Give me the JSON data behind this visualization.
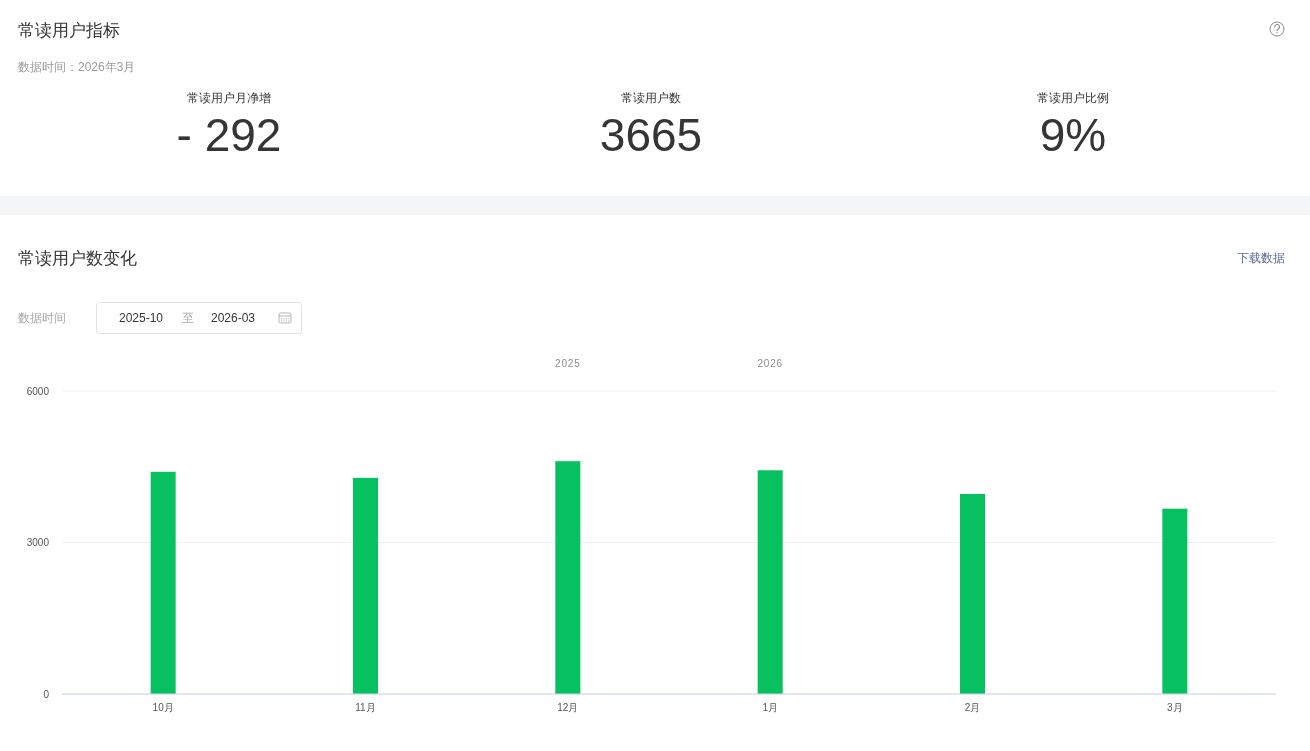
{
  "chart_data": [
    {
      "type": "other",
      "title": "常读用户指标",
      "subtitle": "数据时间：2026年3月",
      "categories": [
        "常读用户月净增",
        "常读用户数",
        "常读用户比例"
      ],
      "annotations": [
        "- 292",
        "3665",
        "9%"
      ]
    },
    {
      "type": "bar",
      "title": "常读用户数变化",
      "categories": [
        "10月",
        "11月",
        "12月",
        "1月",
        "2月",
        "3月"
      ],
      "values": [
        4400,
        4280,
        4610,
        4430,
        3960,
        3670
      ],
      "color": "#07c160",
      "ylim": [
        0,
        6000
      ],
      "yticks": [
        0,
        3000,
        6000
      ],
      "grid": "y",
      "annotations": [
        "下载数据",
        "数据时间",
        "2025-10",
        "至",
        "2026-03",
        "2025",
        "2026"
      ]
    }
  ]
}
